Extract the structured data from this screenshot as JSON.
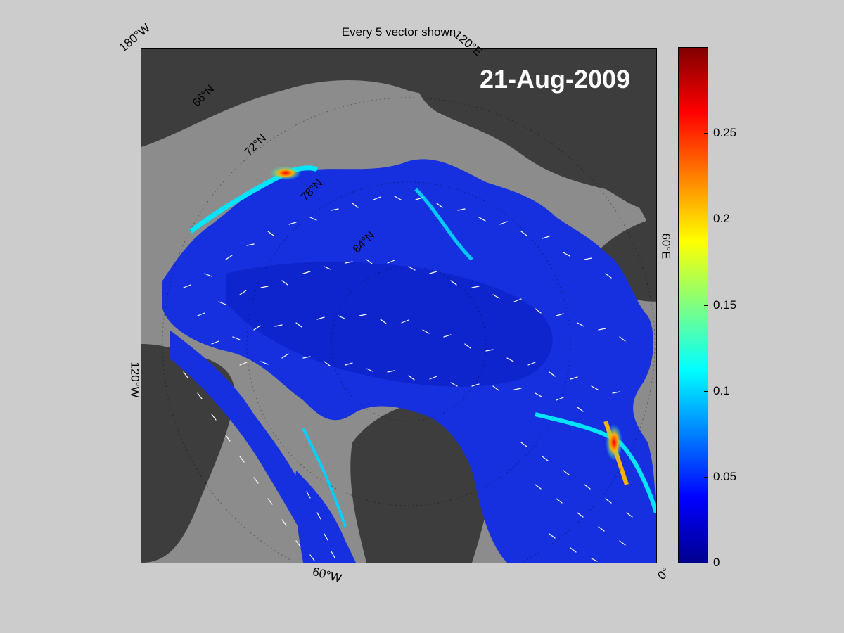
{
  "figure": {
    "title": "Every 5 vector shown",
    "date": "21-Aug-2009"
  },
  "map": {
    "projection": "north-polar-stereographic",
    "longitude_labels": [
      "180°W",
      "120°E",
      "60°E",
      "0°",
      "60°W",
      "120°W"
    ],
    "latitude_labels": [
      "66°N",
      "72°N",
      "78°N",
      "84°N"
    ],
    "land_color": "#3d3d3d",
    "ice_background_color": "#8c8c8c",
    "vector_color": "#ffffff"
  },
  "colorbar": {
    "colormap": "jet",
    "min": 0,
    "max": 0.3,
    "tick_labels": [
      "0",
      "0.05",
      "0.1",
      "0.15",
      "0.2",
      "0.25"
    ]
  }
}
